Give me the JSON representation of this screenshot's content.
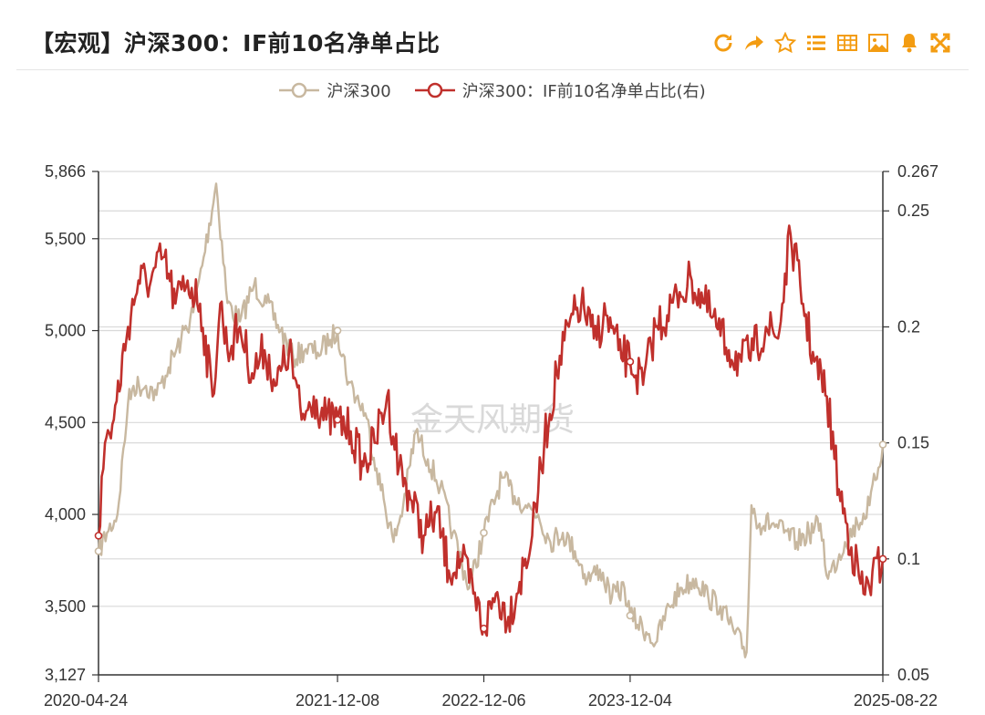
{
  "header": {
    "title": "【宏观】沪深300：IF前10名净单占比",
    "icons": [
      "refresh-icon",
      "share-icon",
      "star-icon",
      "list-icon",
      "table-icon",
      "image-icon",
      "bell-icon",
      "expand-icon"
    ]
  },
  "legend": [
    {
      "name": "沪深300",
      "color": "#c8b8a0"
    },
    {
      "name": "沪深300：IF前10名净单占比(右)",
      "color": "#c0302c"
    }
  ],
  "watermark": "金天风期货",
  "chart_data": {
    "type": "line",
    "x_ticks": [
      "2020-04-24",
      "2021-12-08",
      "2022-12-06",
      "2023-12-04",
      "2025-08-22"
    ],
    "x_range": [
      "2020-04-24",
      "2025-08-22"
    ],
    "left_axis": {
      "ticks": [
        "3,127",
        "3,500",
        "4,000",
        "4,500",
        "5,000",
        "5,500",
        "5,866"
      ],
      "min": 3127,
      "max": 5866
    },
    "right_axis": {
      "ticks": [
        "0.05",
        "0.1",
        "0.15",
        "0.2",
        "0.25",
        "0.267"
      ],
      "min": 0.05,
      "max": 0.267
    },
    "series": [
      {
        "name": "沪深300",
        "axis": "left",
        "color": "#c8b8a0",
        "x": [
          "2020-04-24",
          "2020-05-15",
          "2020-06-10",
          "2020-07-06",
          "2020-07-20",
          "2020-08-20",
          "2020-09-15",
          "2020-10-15",
          "2020-11-15",
          "2020-12-15",
          "2021-01-10",
          "2021-02-10",
          "2021-03-10",
          "2021-04-10",
          "2021-05-15",
          "2021-06-15",
          "2021-07-20",
          "2021-08-20",
          "2021-09-20",
          "2021-10-20",
          "2021-11-20",
          "2021-12-08",
          "2022-01-05",
          "2022-02-15",
          "2022-03-15",
          "2022-04-26",
          "2022-05-20",
          "2022-06-20",
          "2022-07-20",
          "2022-08-20",
          "2022-09-20",
          "2022-10-31",
          "2022-12-06",
          "2023-01-20",
          "2023-02-20",
          "2023-03-20",
          "2023-04-20",
          "2023-05-20",
          "2023-06-20",
          "2023-07-20",
          "2023-08-20",
          "2023-09-20",
          "2023-10-20",
          "2023-11-20",
          "2023-12-04",
          "2024-01-20",
          "2024-02-05",
          "2024-03-10",
          "2024-04-10",
          "2024-05-15",
          "2024-06-15",
          "2024-07-15",
          "2024-08-20",
          "2024-09-18",
          "2024-09-30",
          "2024-10-20",
          "2024-11-20",
          "2024-12-20",
          "2025-01-20",
          "2025-02-20",
          "2025-03-20",
          "2025-04-08",
          "2025-05-20",
          "2025-06-20",
          "2025-07-20",
          "2025-08-22"
        ],
        "values": [
          3800,
          3900,
          4000,
          4600,
          4700,
          4700,
          4650,
          4800,
          4950,
          5100,
          5400,
          5800,
          5150,
          5050,
          5250,
          5150,
          5000,
          4850,
          4900,
          4880,
          4950,
          5000,
          4720,
          4550,
          4250,
          3850,
          4050,
          4450,
          4300,
          4150,
          3900,
          3600,
          3900,
          4200,
          4100,
          4050,
          4000,
          3850,
          3900,
          3800,
          3650,
          3700,
          3550,
          3600,
          3450,
          3350,
          3300,
          3500,
          3600,
          3650,
          3550,
          3500,
          3350,
          3250,
          4050,
          3950,
          3950,
          3900,
          3850,
          3900,
          3950,
          3650,
          3850,
          3950,
          4050,
          4380
        ]
      },
      {
        "name": "沪深300：IF前10名净单占比(右)",
        "axis": "right",
        "color": "#c0302c",
        "x": [
          "2020-04-24",
          "2020-05-10",
          "2020-06-01",
          "2020-07-06",
          "2020-08-01",
          "2020-09-01",
          "2020-10-01",
          "2020-11-01",
          "2020-12-01",
          "2021-01-01",
          "2021-02-01",
          "2021-02-20",
          "2021-03-10",
          "2021-04-10",
          "2021-05-10",
          "2021-06-10",
          "2021-07-10",
          "2021-08-10",
          "2021-09-10",
          "2021-10-10",
          "2021-11-10",
          "2021-12-08",
          "2022-01-10",
          "2022-02-10",
          "2022-03-10",
          "2022-04-10",
          "2022-05-10",
          "2022-06-10",
          "2022-07-10",
          "2022-08-10",
          "2022-09-10",
          "2022-10-10",
          "2022-11-10",
          "2022-12-06",
          "2023-01-05",
          "2023-02-05",
          "2023-03-05",
          "2023-04-05",
          "2023-05-05",
          "2023-06-05",
          "2023-07-05",
          "2023-08-05",
          "2023-09-05",
          "2023-10-05",
          "2023-11-05",
          "2023-12-04",
          "2024-01-05",
          "2024-02-05",
          "2024-03-05",
          "2024-04-05",
          "2024-05-05",
          "2024-06-05",
          "2024-07-05",
          "2024-08-05",
          "2024-09-05",
          "2024-10-05",
          "2024-11-05",
          "2024-12-05",
          "2025-01-05",
          "2025-02-05",
          "2025-03-05",
          "2025-04-05",
          "2025-05-05",
          "2025-06-05",
          "2025-07-05",
          "2025-08-22"
        ],
        "values": [
          0.11,
          0.15,
          0.16,
          0.2,
          0.22,
          0.22,
          0.23,
          0.21,
          0.22,
          0.21,
          0.17,
          0.21,
          0.19,
          0.2,
          0.18,
          0.19,
          0.175,
          0.19,
          0.16,
          0.17,
          0.16,
          0.16,
          0.155,
          0.14,
          0.15,
          0.17,
          0.14,
          0.125,
          0.11,
          0.12,
          0.095,
          0.1,
          0.085,
          0.07,
          0.085,
          0.075,
          0.09,
          0.11,
          0.15,
          0.18,
          0.2,
          0.21,
          0.195,
          0.205,
          0.19,
          0.185,
          0.175,
          0.2,
          0.205,
          0.215,
          0.22,
          0.21,
          0.2,
          0.19,
          0.185,
          0.19,
          0.2,
          0.195,
          0.24,
          0.21,
          0.185,
          0.17,
          0.13,
          0.105,
          0.085,
          0.1
        ]
      }
    ],
    "grid": true
  }
}
